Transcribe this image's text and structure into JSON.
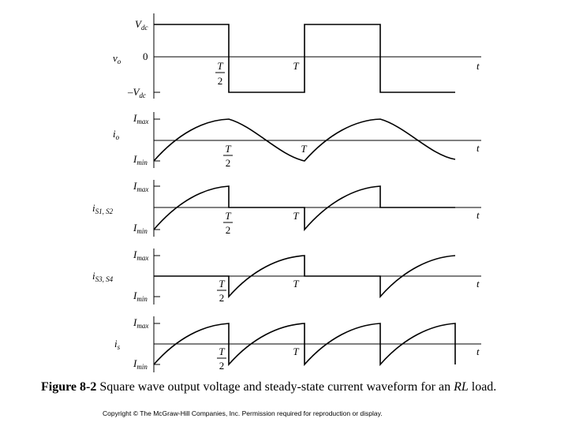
{
  "figure": {
    "caption_label": "Figure 8-2",
    "caption_text": "Square wave output voltage and steady-state current waveform for an",
    "caption_italic": "RL",
    "caption_end": "load.",
    "copyright": "Copyright © The McGraw-Hill Companies, Inc. Permission required for reproduction or display."
  },
  "panels": [
    {
      "name": "vo",
      "signal_label": "v",
      "signal_sub": "o",
      "levels": [
        "V",
        "dc",
        "0",
        "–V",
        "dc"
      ],
      "half_label": [
        "T",
        "2"
      ],
      "period_label": "T",
      "time_label": "t"
    },
    {
      "name": "io",
      "signal_label": "i",
      "signal_sub": "o",
      "levels": [
        "I",
        "max",
        "I",
        "min"
      ],
      "half_label": [
        "T",
        "2"
      ],
      "period_label": "T",
      "time_label": "t"
    },
    {
      "name": "is1-is2",
      "signal_label": "i",
      "signal_sub": "S1, S2",
      "levels": [
        "I",
        "max",
        "I",
        "min"
      ],
      "half_label": [
        "T",
        "2"
      ],
      "period_label": "T",
      "time_label": "t"
    },
    {
      "name": "is3-is4",
      "signal_label": "i",
      "signal_sub": "S3, S4",
      "levels": [
        "I",
        "max",
        "I",
        "min"
      ],
      "half_label": [
        "T",
        "2"
      ],
      "period_label": "T",
      "time_label": "t"
    },
    {
      "name": "is",
      "signal_label": "i",
      "signal_sub": "s",
      "levels": [
        "I",
        "max",
        "I",
        "min"
      ],
      "half_label": [
        "T",
        "2"
      ],
      "period_label": "T",
      "time_label": "t"
    }
  ]
}
